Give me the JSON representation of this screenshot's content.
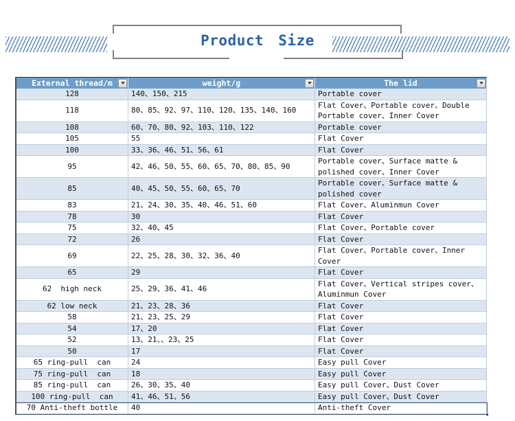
{
  "title": {
    "text": "Product Size"
  },
  "table": {
    "columns": [
      {
        "label": "External thread/m",
        "filter_icon": "filter-dropdown"
      },
      {
        "label": "weight/g",
        "filter_icon": "filter-dropdown"
      },
      {
        "label": "The lid",
        "filter_icon": "filter-dropdown"
      }
    ],
    "rows": [
      {
        "thread": "128",
        "weight": "140、150、215",
        "lid": "Portable cover"
      },
      {
        "thread": "118",
        "weight": "80、85、92、97、110、120、135、140、160",
        "lid": "Flat Cover、Portable cover、Double Portable cover、Inner Cover"
      },
      {
        "thread": "108",
        "weight": "60、70、80、92、103、110、122",
        "lid": "Portable cover"
      },
      {
        "thread": "105",
        "weight": "55",
        "lid": "Flat Cover"
      },
      {
        "thread": "100",
        "weight": "33、36、46、51、56、61",
        "lid": "Flat Cover"
      },
      {
        "thread": "95",
        "weight": "42、46、50、55、60、65、70、80、85、90",
        "lid": "Portable cover、Surface matte & polished cover、Inner Cover"
      },
      {
        "thread": "85",
        "weight": "40、45、50、55、60、65、70",
        "lid": "Portable cover、Surface matte & polished cover"
      },
      {
        "thread": "83",
        "weight": "21、24、30、35、40、46、51、60",
        "lid": "Flat Cover、Aluminmun Cover"
      },
      {
        "thread": "78",
        "weight": "30",
        "lid": "Flat Cover"
      },
      {
        "thread": "75",
        "weight": "32、40、45",
        "lid": "Flat Cover、Portable cover"
      },
      {
        "thread": "72",
        "weight": "26",
        "lid": "Flat Cover"
      },
      {
        "thread": "69",
        "weight": "22、25、28、30、32、36、40",
        "lid": "Flat Cover、Portable cover、Inner Cover"
      },
      {
        "thread": "65",
        "weight": "29",
        "lid": "Flat Cover"
      },
      {
        "thread": "62  high neck",
        "weight": "25、29、36、41、46",
        "lid": "Flat Cover、Vertical stripes cover、Aluminmun Cover"
      },
      {
        "thread": "62 low neck",
        "weight": "21、23、28、36",
        "lid": "Flat Cover"
      },
      {
        "thread": "58",
        "weight": "21、23、25、29",
        "lid": "Flat Cover"
      },
      {
        "thread": "54",
        "weight": "17、20",
        "lid": "Flat Cover"
      },
      {
        "thread": "52",
        "weight": "13、21、、23、25",
        "lid": "Flat Cover"
      },
      {
        "thread": "50",
        "weight": "17",
        "lid": "Flat Cover"
      },
      {
        "thread": "65 ring-pull  can",
        "weight": "24",
        "lid": "Easy pull Cover"
      },
      {
        "thread": "75 ring-pull  can",
        "weight": "18",
        "lid": "Easy pull Cover"
      },
      {
        "thread": "85 ring-pull  can",
        "weight": "26、30、35、40",
        "lid": "Easy pull Cover、Dust Cover"
      },
      {
        "thread": "100 ring-pull  can",
        "weight": "41、46、51、56",
        "lid": "Easy pull Cover、Dust Cover"
      },
      {
        "thread": "70 Anti-theft bottle",
        "weight": "40",
        "lid": "Anti-theft Cover"
      }
    ]
  },
  "colors": {
    "header_bg": "#6D9DC8",
    "band_bg": "#DCE6F1",
    "grid_line": "#BCCCDE",
    "title_blue": "#2B64A7",
    "hatch_blue": "#4C7FBE",
    "bracket_gray": "#808080",
    "table_edge": "#4D4D4D",
    "selection": "#44546A",
    "selection_handle": "#1F3864",
    "header_text": "#FFFFFF",
    "cell_text": "#111111"
  }
}
